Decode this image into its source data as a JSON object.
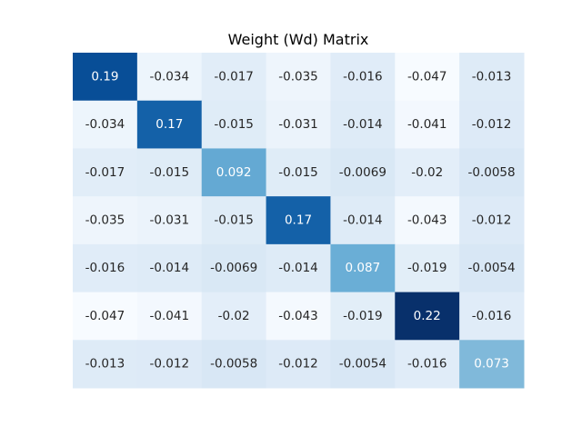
{
  "chart_data": {
    "type": "heatmap",
    "title": "Weight (Wd) Matrix",
    "xlabel": "",
    "ylabel": "",
    "colormap": "Blues",
    "value_range": [
      -0.047,
      0.22
    ],
    "colorbar": false,
    "grid": false,
    "axes_visible": false,
    "values": [
      [
        "0.19",
        "-0.034",
        "-0.017",
        "-0.035",
        "-0.016",
        "-0.047",
        "-0.013"
      ],
      [
        "-0.034",
        "0.17",
        "-0.015",
        "-0.031",
        "-0.014",
        "-0.041",
        "-0.012"
      ],
      [
        "-0.017",
        "-0.015",
        "0.092",
        "-0.015",
        "-0.0069",
        "-0.02",
        "-0.0058"
      ],
      [
        "-0.035",
        "-0.031",
        "-0.015",
        "0.17",
        "-0.014",
        "-0.043",
        "-0.012"
      ],
      [
        "-0.016",
        "-0.014",
        "-0.0069",
        "-0.014",
        "0.087",
        "-0.019",
        "-0.0054"
      ],
      [
        "-0.047",
        "-0.041",
        "-0.02",
        "-0.043",
        "-0.019",
        "0.22",
        "-0.016"
      ],
      [
        "-0.013",
        "-0.012",
        "-0.0058",
        "-0.012",
        "-0.0054",
        "-0.016",
        "0.073"
      ]
    ]
  }
}
